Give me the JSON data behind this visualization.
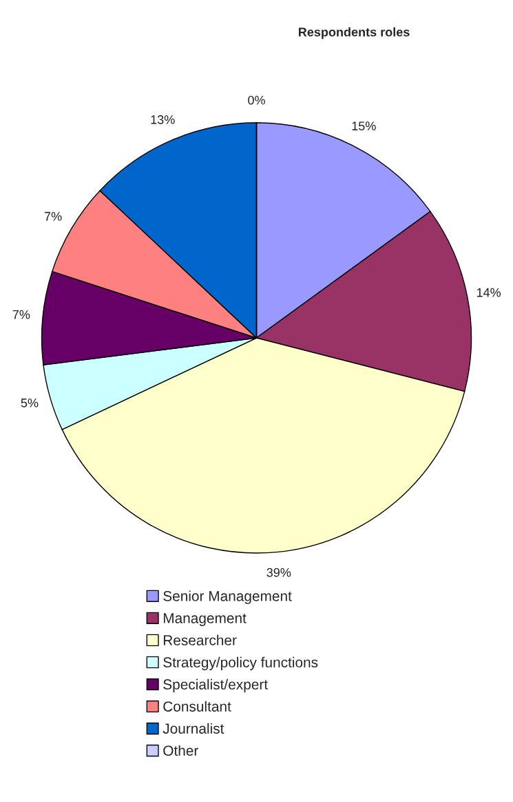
{
  "chart_data": {
    "type": "pie",
    "title": "Respondents roles",
    "categories": [
      "Senior Management",
      "Management",
      "Researcher",
      "Strategy/policy functions",
      "Specialist/expert",
      "Consultant",
      "Journalist",
      "Other"
    ],
    "values": [
      15,
      14,
      39,
      5,
      7,
      7,
      13,
      0
    ],
    "value_labels": [
      "15%",
      "14%",
      "39%",
      "5%",
      "7%",
      "7%",
      "13%",
      "0%"
    ],
    "colors": [
      "#9999ff",
      "#993366",
      "#ffffcc",
      "#ccffff",
      "#660066",
      "#ff8080",
      "#0066cc",
      "#ccccff"
    ],
    "legend": "bottom"
  }
}
